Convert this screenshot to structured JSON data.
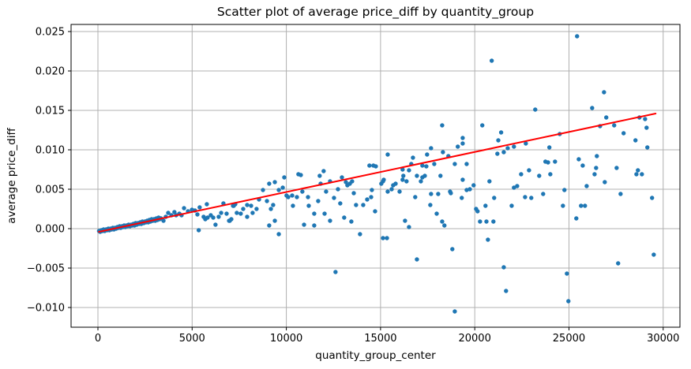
{
  "figure": {
    "background": "#ffffff",
    "title": "Scatter plot of average price_diff by quantity_group"
  },
  "chart_data": {
    "type": "scatter",
    "title": "Scatter plot of average price_diff by quantity_group",
    "xlabel": "quantity_group_center",
    "ylabel": "average price_diff",
    "xlim": [
      -1425,
      30890
    ],
    "ylim": [
      -0.0125,
      0.0259
    ],
    "xticks": [
      0,
      5000,
      10000,
      15000,
      20000,
      25000,
      30000
    ],
    "yticks": [
      -0.01,
      -0.005,
      0.0,
      0.005,
      0.01,
      0.015,
      0.02,
      0.025
    ],
    "grid": true,
    "legend": "none",
    "point_color": "#1f77b4",
    "trend_color": "#ff0000",
    "grid_color": "#b0b0b0",
    "spine_color": "#000000",
    "trendline": {
      "x1": 50,
      "y1": -0.0004,
      "x2": 29600,
      "y2": 0.0146
    },
    "points": [
      [
        60,
        -0.0003
      ],
      [
        120,
        -0.0004
      ],
      [
        180,
        -0.0002
      ],
      [
        240,
        -0.0003
      ],
      [
        300,
        -0.0001
      ],
      [
        360,
        -0.0003
      ],
      [
        430,
        -0.0001
      ],
      [
        490,
        -0.0002
      ],
      [
        550,
        0.0
      ],
      [
        610,
        -0.0002
      ],
      [
        670,
        0.0
      ],
      [
        730,
        -0.0001
      ],
      [
        790,
        0.0001
      ],
      [
        850,
        -0.0001
      ],
      [
        910,
        0.0001
      ],
      [
        970,
        0.0
      ],
      [
        1030,
        0.0002
      ],
      [
        1090,
        0.0001
      ],
      [
        1150,
        0.0003
      ],
      [
        1210,
        0.0001
      ],
      [
        1270,
        0.0003
      ],
      [
        1330,
        0.0002
      ],
      [
        1390,
        0.0004
      ],
      [
        1450,
        0.0002
      ],
      [
        1510,
        0.0004
      ],
      [
        1570,
        0.0003
      ],
      [
        1630,
        0.0005
      ],
      [
        1700,
        0.0003
      ],
      [
        1760,
        0.0005
      ],
      [
        1820,
        0.0004
      ],
      [
        1880,
        0.0006
      ],
      [
        1940,
        0.0004
      ],
      [
        2000,
        0.0007
      ],
      [
        2060,
        0.0005
      ],
      [
        2120,
        0.0007
      ],
      [
        2180,
        0.0006
      ],
      [
        2240,
        0.0008
      ],
      [
        2300,
        0.0006
      ],
      [
        2360,
        0.0009
      ],
      [
        2430,
        0.0007
      ],
      [
        2490,
        0.0009
      ],
      [
        2550,
        0.0008
      ],
      [
        2610,
        0.001
      ],
      [
        2670,
        0.0008
      ],
      [
        2730,
        0.0011
      ],
      [
        2790,
        0.0009
      ],
      [
        2850,
        0.0012
      ],
      [
        2910,
        0.001
      ],
      [
        2980,
        0.0012
      ],
      [
        3040,
        0.001
      ],
      [
        3100,
        0.0013
      ],
      [
        3160,
        0.0011
      ],
      [
        3220,
        0.0014
      ],
      [
        3280,
        0.0012
      ],
      [
        3350,
        0.0013
      ],
      [
        3310,
        0.0013
      ],
      [
        3480,
        0.001
      ],
      [
        3600,
        0.0015
      ],
      [
        3730,
        0.002
      ],
      [
        3900,
        0.0017
      ],
      [
        4060,
        0.0021
      ],
      [
        4150,
        0.0017
      ],
      [
        4320,
        0.0019
      ],
      [
        4440,
        0.0017
      ],
      [
        4570,
        0.0026
      ],
      [
        4780,
        0.0022
      ],
      [
        4990,
        0.0024
      ],
      [
        5150,
        0.0023
      ],
      [
        5280,
        0.0018
      ],
      [
        5350,
        -0.0002
      ],
      [
        5400,
        0.0027
      ],
      [
        5610,
        0.0015
      ],
      [
        5700,
        0.0012
      ],
      [
        5780,
        0.0031
      ],
      [
        5820,
        0.0014
      ],
      [
        5990,
        0.0017
      ],
      [
        6120,
        0.0014
      ],
      [
        6240,
        0.0005
      ],
      [
        6410,
        0.0015
      ],
      [
        6540,
        0.002
      ],
      [
        6660,
        0.0032
      ],
      [
        6830,
        0.0019
      ],
      [
        6960,
        0.001
      ],
      [
        7080,
        0.0012
      ],
      [
        7170,
        0.0029
      ],
      [
        7290,
        0.0031
      ],
      [
        7000,
        0.001
      ],
      [
        7210,
        0.0029
      ],
      [
        7370,
        0.002
      ],
      [
        7580,
        0.0019
      ],
      [
        7710,
        0.0025
      ],
      [
        7920,
        0.003
      ],
      [
        7920,
        0.0015
      ],
      [
        8130,
        0.0029
      ],
      [
        8210,
        0.002
      ],
      [
        8420,
        0.0025
      ],
      [
        8550,
        0.0037
      ],
      [
        8760,
        0.0049
      ],
      [
        8970,
        0.0035
      ],
      [
        9090,
        0.0057
      ],
      [
        9180,
        0.0025
      ],
      [
        9300,
        0.003
      ],
      [
        9090,
        0.0004
      ],
      [
        9390,
        0.0059
      ],
      [
        9390,
        0.001
      ],
      [
        9600,
        0.0049
      ],
      [
        9600,
        -0.0007
      ],
      [
        9810,
        0.0052
      ],
      [
        9890,
        0.0065
      ],
      [
        10010,
        0.0042
      ],
      [
        10100,
        0.004
      ],
      [
        10310,
        0.0042
      ],
      [
        10350,
        0.0029
      ],
      [
        10560,
        0.004
      ],
      [
        10640,
        0.0069
      ],
      [
        10770,
        0.0068
      ],
      [
        10850,
        0.0047
      ],
      [
        10940,
        0.0005
      ],
      [
        11150,
        0.004
      ],
      [
        11190,
        0.0029
      ],
      [
        11480,
        0.0019
      ],
      [
        11480,
        0.0004
      ],
      [
        11690,
        0.0035
      ],
      [
        11770,
        0.0067
      ],
      [
        11820,
        0.0057
      ],
      [
        11980,
        0.0073
      ],
      [
        12030,
        0.0019
      ],
      [
        12110,
        0.0047
      ],
      [
        12320,
        0.006
      ],
      [
        12320,
        0.001
      ],
      [
        12530,
        0.0039
      ],
      [
        12610,
        -0.0055
      ],
      [
        12740,
        0.005
      ],
      [
        12860,
        0.0032
      ],
      [
        12950,
        0.0065
      ],
      [
        13070,
        0.0014
      ],
      [
        13160,
        0.0059
      ],
      [
        13240,
        0.0055
      ],
      [
        13370,
        0.0057
      ],
      [
        13450,
        0.0009
      ],
      [
        13490,
        0.006
      ],
      [
        13580,
        0.0045
      ],
      [
        13700,
        0.003
      ],
      [
        13910,
        -0.0007
      ],
      [
        14080,
        0.003
      ],
      [
        14290,
        0.0037
      ],
      [
        14410,
        0.008
      ],
      [
        14500,
        0.004
      ],
      [
        14540,
        0.0049
      ],
      [
        14620,
        0.008
      ],
      [
        14710,
        0.0022
      ],
      [
        14750,
        0.0079
      ],
      [
        15040,
        0.0057
      ],
      [
        15130,
        -0.0012
      ],
      [
        15130,
        0.006
      ],
      [
        15170,
        0.0062
      ],
      [
        15340,
        -0.0012
      ],
      [
        15380,
        0.0094
      ],
      [
        15380,
        0.0047
      ],
      [
        15590,
        0.005
      ],
      [
        15670,
        0.0055
      ],
      [
        15800,
        0.0057
      ],
      [
        16010,
        0.0047
      ],
      [
        16170,
        0.0075
      ],
      [
        16170,
        0.0062
      ],
      [
        16210,
        0.0067
      ],
      [
        16300,
        0.001
      ],
      [
        16380,
        0.006
      ],
      [
        16510,
        0.0074
      ],
      [
        16510,
        0.0002
      ],
      [
        16630,
        0.0082
      ],
      [
        16720,
        0.009
      ],
      [
        16840,
        0.004
      ],
      [
        16930,
        0.0067
      ],
      [
        16930,
        -0.0039
      ],
      [
        17140,
        0.006
      ],
      [
        17220,
        0.008
      ],
      [
        17220,
        0.0065
      ],
      [
        17350,
        0.0067
      ],
      [
        17430,
        0.0079
      ],
      [
        17470,
        0.0094
      ],
      [
        17640,
        0.003
      ],
      [
        17680,
        0.0102
      ],
      [
        17680,
        0.0044
      ],
      [
        17850,
        0.0082
      ],
      [
        17980,
        0.0019
      ],
      [
        18060,
        0.0044
      ],
      [
        18180,
        0.0067
      ],
      [
        18270,
        0.0131
      ],
      [
        18270,
        0.0009
      ],
      [
        18310,
        0.0097
      ],
      [
        18390,
        0.0004
      ],
      [
        18600,
        0.0092
      ],
      [
        18690,
        0.0047
      ],
      [
        18730,
        0.0045
      ],
      [
        18810,
        -0.0026
      ],
      [
        18940,
        0.0082
      ],
      [
        18940,
        -0.0105
      ],
      [
        19100,
        0.0104
      ],
      [
        19310,
        0.0039
      ],
      [
        19360,
        0.0115
      ],
      [
        19360,
        0.0108
      ],
      [
        19360,
        0.0062
      ],
      [
        19570,
        0.0082
      ],
      [
        19570,
        0.0049
      ],
      [
        19740,
        0.005
      ],
      [
        19940,
        0.0055
      ],
      [
        20070,
        0.0025
      ],
      [
        20150,
        0.0022
      ],
      [
        20280,
        0.0009
      ],
      [
        20400,
        0.0131
      ],
      [
        20570,
        0.0029
      ],
      [
        20620,
        0.0009
      ],
      [
        20700,
        -0.0014
      ],
      [
        20780,
        0.006
      ],
      [
        20900,
        0.0213
      ],
      [
        20990,
        0.0009
      ],
      [
        21030,
        0.0039
      ],
      [
        21200,
        0.0095
      ],
      [
        21250,
        0.0112
      ],
      [
        21400,
        0.0122
      ],
      [
        21540,
        0.0097
      ],
      [
        21540,
        -0.0049
      ],
      [
        21660,
        -0.0079
      ],
      [
        21750,
        0.0102
      ],
      [
        21960,
        0.0029
      ],
      [
        22080,
        0.0104
      ],
      [
        22080,
        0.0052
      ],
      [
        22250,
        0.0054
      ],
      [
        22460,
        0.0069
      ],
      [
        22670,
        0.004
      ],
      [
        22710,
        0.0108
      ],
      [
        22880,
        0.0074
      ],
      [
        23000,
        0.0039
      ],
      [
        23210,
        0.0151
      ],
      [
        23420,
        0.0067
      ],
      [
        23630,
        0.0044
      ],
      [
        23750,
        0.0085
      ],
      [
        23890,
        0.0084
      ],
      [
        23960,
        0.0103
      ],
      [
        24010,
        0.0069
      ],
      [
        24260,
        0.0085
      ],
      [
        24510,
        0.012
      ],
      [
        24680,
        0.0029
      ],
      [
        24760,
        0.0049
      ],
      [
        24890,
        -0.0057
      ],
      [
        24970,
        -0.0092
      ],
      [
        25390,
        0.0013
      ],
      [
        25430,
        0.0244
      ],
      [
        25520,
        0.0088
      ],
      [
        25640,
        0.0029
      ],
      [
        25730,
        0.008
      ],
      [
        25850,
        0.0029
      ],
      [
        25940,
        0.0054
      ],
      [
        26230,
        0.0153
      ],
      [
        26360,
        0.0069
      ],
      [
        26440,
        0.0077
      ],
      [
        26480,
        0.0092
      ],
      [
        26650,
        0.013
      ],
      [
        26860,
        0.0173
      ],
      [
        26900,
        0.0059
      ],
      [
        26980,
        0.0141
      ],
      [
        27400,
        0.0131
      ],
      [
        27530,
        0.0077
      ],
      [
        27610,
        -0.0044
      ],
      [
        27740,
        0.0044
      ],
      [
        27900,
        0.0121
      ],
      [
        28530,
        0.0112
      ],
      [
        28580,
        0.0069
      ],
      [
        28660,
        0.0074
      ],
      [
        28740,
        0.0141
      ],
      [
        28870,
        0.0069
      ],
      [
        29040,
        0.0139
      ],
      [
        29120,
        0.0128
      ],
      [
        29160,
        0.0103
      ],
      [
        29410,
        0.0039
      ],
      [
        29500,
        -0.0033
      ]
    ]
  }
}
